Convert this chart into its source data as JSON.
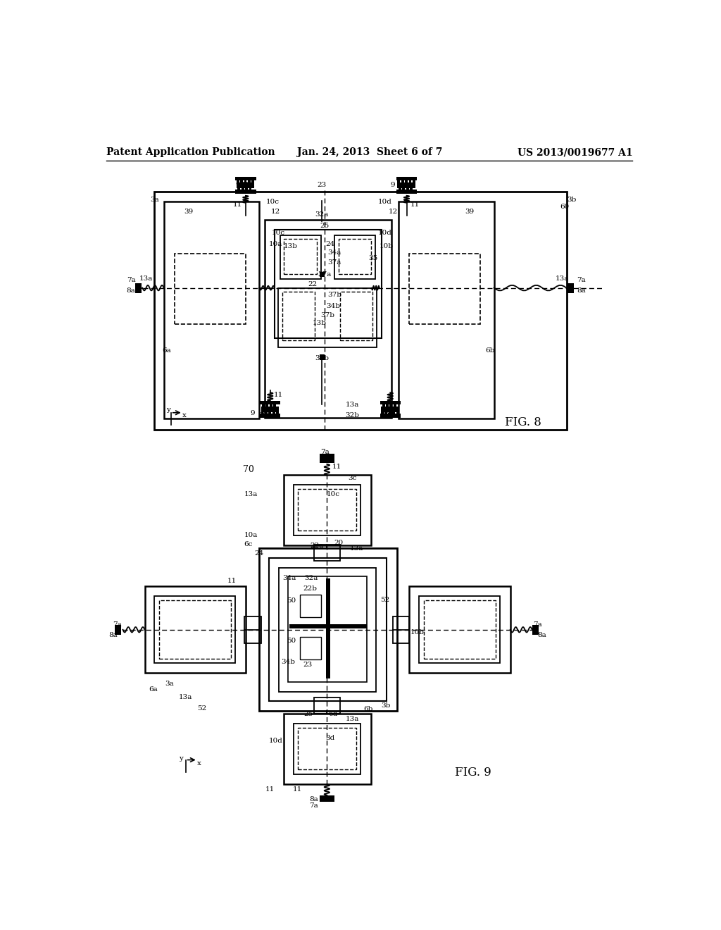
{
  "bg_color": "#ffffff",
  "line_color": "#000000",
  "header_left": "Patent Application Publication",
  "header_center": "Jan. 24, 2013  Sheet 6 of 7",
  "header_right": "US 2013/0019677 A1",
  "fig8_label": "FIG. 8",
  "fig9_label": "FIG. 9",
  "font_size_header": 10,
  "font_size_label": 7.5,
  "font_size_fig": 12
}
